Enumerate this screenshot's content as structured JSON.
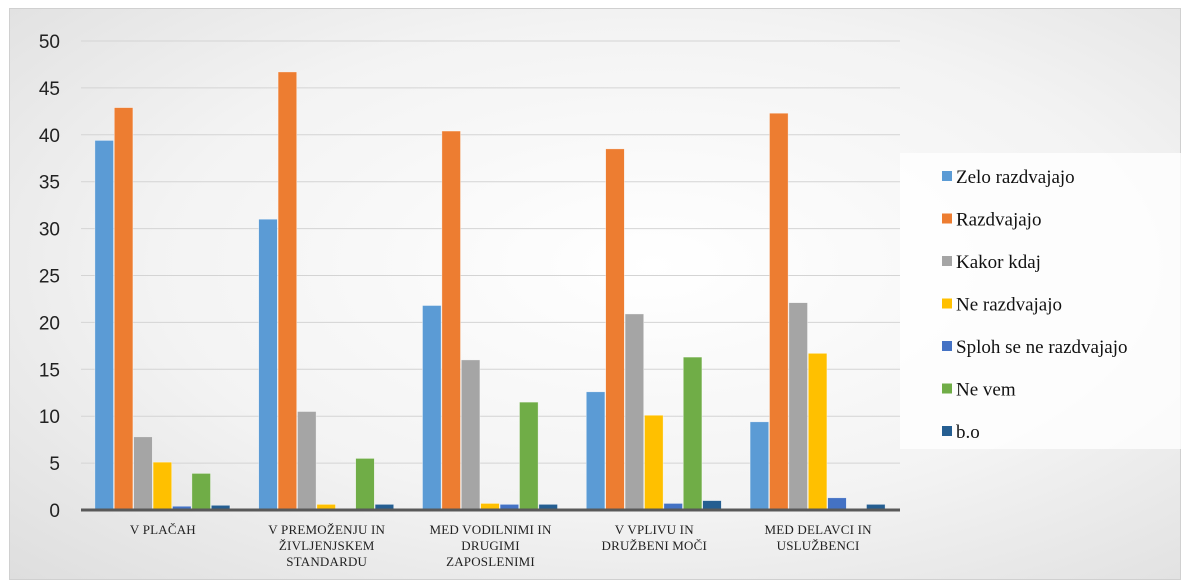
{
  "chart_data": {
    "type": "bar",
    "categories": [
      [
        "V PLAČAH"
      ],
      [
        "V PREMOŽENJU IN",
        "ŽIVLJENJSKEM",
        "STANDARDU"
      ],
      [
        "MED VODILNIMI IN",
        "DRUGIMI",
        "ZAPOSLENIMI"
      ],
      [
        "V VPLIVU IN",
        "DRUŽBENI MOČI"
      ],
      [
        "MED DELAVCI IN",
        "USLUŽBENCI"
      ]
    ],
    "series": [
      {
        "name": "Zelo razdvajajo",
        "color": "#5b9bd5",
        "values": [
          39.4,
          31.0,
          21.8,
          12.6,
          9.4
        ]
      },
      {
        "name": "Razdvajajo",
        "color": "#ed7d31",
        "values": [
          42.9,
          46.7,
          40.4,
          38.5,
          42.3
        ]
      },
      {
        "name": "Kakor kdaj",
        "color": "#a5a5a5",
        "values": [
          7.8,
          10.5,
          16.0,
          20.9,
          22.1
        ]
      },
      {
        "name": "Ne razdvajajo",
        "color": "#ffc000",
        "values": [
          5.1,
          0.6,
          0.7,
          10.1,
          16.7
        ]
      },
      {
        "name": "Sploh se ne razdvajajo",
        "color": "#4472c4",
        "values": [
          0.4,
          0.1,
          0.6,
          0.7,
          1.3
        ]
      },
      {
        "name": "Ne vem",
        "color": "#70ad47",
        "values": [
          3.9,
          5.5,
          11.5,
          16.3,
          0.0
        ]
      },
      {
        "name": "b.o",
        "color": "#255e91",
        "values": [
          0.5,
          0.6,
          0.6,
          1.0,
          0.6
        ]
      }
    ],
    "ylim": [
      0,
      50
    ],
    "yticks": [
      0,
      5,
      10,
      15,
      20,
      25,
      30,
      35,
      40,
      45,
      50
    ],
    "grid": true,
    "legend": "right"
  }
}
